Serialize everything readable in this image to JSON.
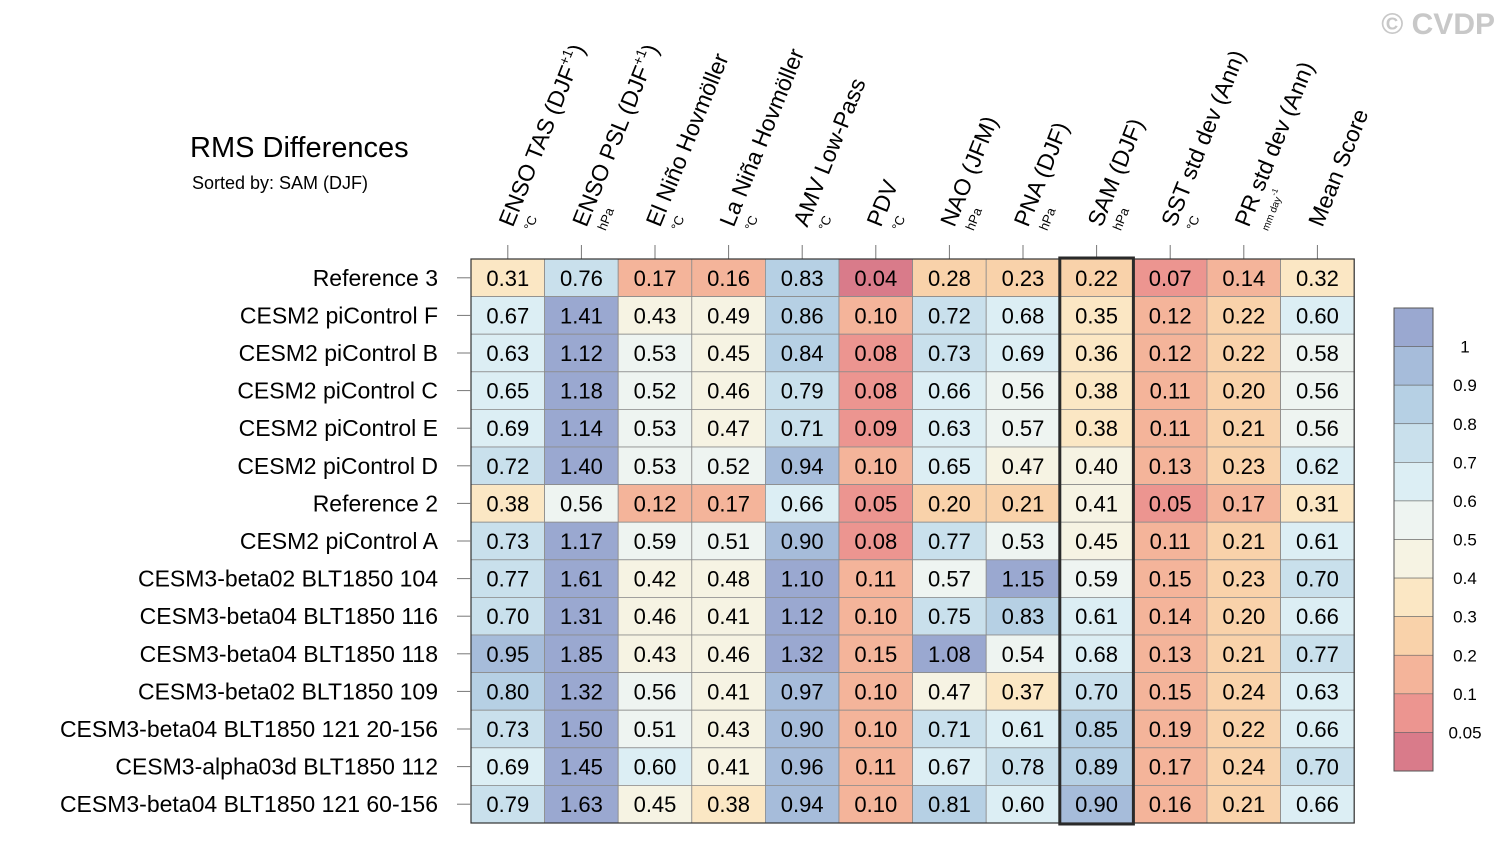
{
  "watermark": "© CVDP",
  "chart_data": {
    "type": "heatmap",
    "title": "RMS Differences",
    "subtitle": "Sorted by: SAM (DJF)",
    "highlight_column": "SAM (DJF)",
    "columns": [
      {
        "label": "ENSO TAS (DJF",
        "sup": "+1",
        "close": ")",
        "unit": "°C"
      },
      {
        "label": "ENSO PSL (DJF",
        "sup": "+1",
        "close": ")",
        "unit": "hPa"
      },
      {
        "label": "El Niño Hovmöller",
        "sup": "",
        "close": "",
        "unit": "°C"
      },
      {
        "label": "La Niña Hovmöller",
        "sup": "",
        "close": "",
        "unit": "°C"
      },
      {
        "label": "AMV Low-Pass",
        "sup": "",
        "close": "",
        "unit": "°C"
      },
      {
        "label": "PDV",
        "sup": "",
        "close": "",
        "unit": "°C"
      },
      {
        "label": "NAO (JFM)",
        "sup": "",
        "close": "",
        "unit": "hPa"
      },
      {
        "label": "PNA (DJF)",
        "sup": "",
        "close": "",
        "unit": "hPa"
      },
      {
        "label": "SAM (DJF)",
        "sup": "",
        "close": "",
        "unit": "hPa"
      },
      {
        "label": "SST std dev (Ann)",
        "sup": "",
        "close": "",
        "unit": "°C"
      },
      {
        "label": "PR std dev (Ann)",
        "sup": "",
        "close": "",
        "unit": "mm day",
        "unit_sup": "-1"
      },
      {
        "label": "Mean Score",
        "sup": "",
        "close": "",
        "unit": ""
      }
    ],
    "rows": [
      {
        "name": "Reference 3",
        "values": [
          0.31,
          0.76,
          0.17,
          0.16,
          0.83,
          0.04,
          0.28,
          0.23,
          0.22,
          0.07,
          0.14,
          0.32
        ]
      },
      {
        "name": "CESM2 piControl F",
        "values": [
          0.67,
          1.41,
          0.43,
          0.49,
          0.86,
          0.1,
          0.72,
          0.68,
          0.35,
          0.12,
          0.22,
          0.6
        ]
      },
      {
        "name": "CESM2 piControl B",
        "values": [
          0.63,
          1.12,
          0.53,
          0.45,
          0.84,
          0.08,
          0.73,
          0.69,
          0.36,
          0.12,
          0.22,
          0.58
        ]
      },
      {
        "name": "CESM2 piControl C",
        "values": [
          0.65,
          1.18,
          0.52,
          0.46,
          0.79,
          0.08,
          0.66,
          0.56,
          0.38,
          0.11,
          0.2,
          0.56
        ]
      },
      {
        "name": "CESM2 piControl E",
        "values": [
          0.69,
          1.14,
          0.53,
          0.47,
          0.71,
          0.09,
          0.63,
          0.57,
          0.38,
          0.11,
          0.21,
          0.56
        ]
      },
      {
        "name": "CESM2 piControl D",
        "values": [
          0.72,
          1.4,
          0.53,
          0.52,
          0.94,
          0.1,
          0.65,
          0.47,
          0.4,
          0.13,
          0.23,
          0.62
        ]
      },
      {
        "name": "Reference 2",
        "values": [
          0.38,
          0.56,
          0.12,
          0.17,
          0.66,
          0.05,
          0.2,
          0.21,
          0.41,
          0.05,
          0.17,
          0.31
        ]
      },
      {
        "name": "CESM2 piControl A",
        "values": [
          0.73,
          1.17,
          0.59,
          0.51,
          0.9,
          0.08,
          0.77,
          0.53,
          0.45,
          0.11,
          0.21,
          0.61
        ]
      },
      {
        "name": "CESM3-beta02 BLT1850 104",
        "values": [
          0.77,
          1.61,
          0.42,
          0.48,
          1.1,
          0.11,
          0.57,
          1.15,
          0.59,
          0.15,
          0.23,
          0.7
        ]
      },
      {
        "name": "CESM3-beta04 BLT1850 116",
        "values": [
          0.7,
          1.31,
          0.46,
          0.41,
          1.12,
          0.1,
          0.75,
          0.83,
          0.61,
          0.14,
          0.2,
          0.66
        ]
      },
      {
        "name": "CESM3-beta04 BLT1850 118",
        "values": [
          0.95,
          1.85,
          0.43,
          0.46,
          1.32,
          0.15,
          1.08,
          0.54,
          0.68,
          0.13,
          0.21,
          0.77
        ]
      },
      {
        "name": "CESM3-beta02 BLT1850 109",
        "values": [
          0.8,
          1.32,
          0.56,
          0.41,
          0.97,
          0.1,
          0.47,
          0.37,
          0.7,
          0.15,
          0.24,
          0.63
        ]
      },
      {
        "name": "CESM3-beta04 BLT1850 121 20-156",
        "values": [
          0.73,
          1.5,
          0.51,
          0.43,
          0.9,
          0.1,
          0.71,
          0.61,
          0.85,
          0.19,
          0.22,
          0.66
        ]
      },
      {
        "name": "CESM3-alpha03d BLT1850 112",
        "values": [
          0.69,
          1.45,
          0.6,
          0.41,
          0.96,
          0.11,
          0.67,
          0.78,
          0.89,
          0.17,
          0.24,
          0.7
        ]
      },
      {
        "name": "CESM3-beta04 BLT1850 121 60-156",
        "values": [
          0.79,
          1.63,
          0.45,
          0.38,
          0.94,
          0.1,
          0.81,
          0.6,
          0.9,
          0.16,
          0.21,
          0.66
        ]
      }
    ],
    "colorbar": {
      "levels": [
        "1",
        "0.9",
        "0.8",
        "0.7",
        "0.6",
        "0.5",
        "0.4",
        "0.3",
        "0.2",
        "0.1",
        "0.05"
      ],
      "thresholds": [
        1,
        0.9,
        0.8,
        0.7,
        0.6,
        0.5,
        0.4,
        0.3,
        0.2,
        0.1,
        0.05
      ],
      "colors": [
        "#9aa8d0",
        "#a6bcda",
        "#b6d0e4",
        "#c9e0ec",
        "#dceef4",
        "#eef4f1",
        "#f6f3e3",
        "#fbe7c4",
        "#f9d2aa",
        "#f4b49a",
        "#ec9590",
        "#d97b8a"
      ]
    }
  }
}
